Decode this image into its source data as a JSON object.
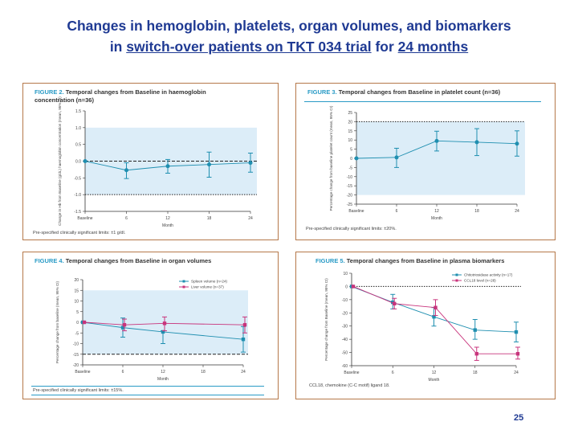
{
  "title": {
    "line1": "Changes in hemoglobin, platelets, organ volumes, and biomarkers",
    "line2_pre": "in ",
    "line2_u1": "switch-over patients on TKT 034 trial",
    "line2_mid": " for ",
    "line2_u2": "24 months"
  },
  "page_number": "25",
  "colors": {
    "teal": "#1f8fb0",
    "magenta": "#c8347c",
    "band": "#dcedf8",
    "border": "#b5784a"
  },
  "chart_data": [
    {
      "type": "line",
      "figure_label": "FIGURE 2.",
      "title": "Temporal changes from Baseline in haemoglobin concentration (n=36)",
      "xlabel": "Month",
      "ylabel": "Change in Hb from Baseline (g/dL) haemoglobin concentration (mean, 95% CI)",
      "categories": [
        "Baseline",
        "6",
        "12",
        "18",
        "24"
      ],
      "ylim": [
        -1.5,
        1.5
      ],
      "yticks": [
        "1.5",
        "1.0",
        "0.5",
        "0.0",
        "-0.5",
        "-1.0",
        "-1.5"
      ],
      "shaded_band": [
        -1,
        1
      ],
      "reference_lines": [
        {
          "y": 0,
          "style": "dashed"
        },
        {
          "y": -1,
          "style": "dotted"
        }
      ],
      "series": [
        {
          "values": [
            0,
            -0.27,
            -0.15,
            -0.1,
            -0.05
          ],
          "ci_low": [
            null,
            -0.52,
            -0.36,
            -0.48,
            -0.33
          ],
          "ci_high": [
            null,
            -0.05,
            0.05,
            0.27,
            0.24
          ],
          "color": "#1f8fb0"
        }
      ],
      "footnote": "Pre-specified clinically significant limits: ±1 g/dl."
    },
    {
      "type": "line",
      "figure_label": "FIGURE 3.",
      "title": "Temporal changes from Baseline in platelet count (n=36)",
      "xlabel": "Month",
      "ylabel": "Percentage change from baseline platelet count (mean, 95% CI)",
      "categories": [
        "Baseline",
        "6",
        "12",
        "18",
        "24"
      ],
      "ylim": [
        -25,
        25
      ],
      "yticks": [
        "25",
        "20",
        "15",
        "10",
        "5",
        "0",
        "-5",
        "-10",
        "-15",
        "-20",
        "-25"
      ],
      "shaded_band": [
        -20,
        20
      ],
      "reference_lines": [
        {
          "y": 20,
          "style": "dotted"
        }
      ],
      "series": [
        {
          "values": [
            0,
            0.5,
            9.5,
            8.8,
            8
          ],
          "ci_low": [
            null,
            -5,
            4,
            1.5,
            1.2
          ],
          "ci_high": [
            null,
            5.5,
            14.8,
            16.2,
            15
          ],
          "color": "#1f8fb0"
        }
      ],
      "footnote": "Pre-specified clinically significant limits: ±20%."
    },
    {
      "type": "line",
      "figure_label": "FIGURE 4.",
      "title": "Temporal changes from Baseline in organ volumes",
      "xlabel": "Month",
      "ylabel": "Percentage change from baseline (mean, 95% CI)",
      "categories": [
        "Baseline",
        "6",
        "12",
        "18",
        "24"
      ],
      "ylim": [
        -20,
        20
      ],
      "yticks": [
        "20",
        "15",
        "10",
        "5",
        "0",
        "-5",
        "-10",
        "-15",
        "-20"
      ],
      "shaded_band": [
        -15,
        15
      ],
      "reference_lines": [
        {
          "y": -15,
          "style": "dashed"
        }
      ],
      "legend": "top-right",
      "series": [
        {
          "name": "Spleen volume (n=24)",
          "values": [
            0,
            -2.5,
            -4.5,
            null,
            -8
          ],
          "ci_low": [
            null,
            -7,
            -10,
            null,
            -14
          ],
          "ci_high": [
            null,
            2,
            -4,
            null,
            -2
          ],
          "color": "#1f8fb0"
        },
        {
          "name": "Liver volume (n=37)",
          "values": [
            0,
            -1.2,
            -0.5,
            null,
            -1.2
          ],
          "ci_low": [
            null,
            -4,
            -4,
            null,
            -5
          ],
          "ci_high": [
            null,
            1.5,
            2.5,
            null,
            2.5
          ],
          "color": "#c8347c"
        }
      ],
      "footnote": "Pre-specified clinically significant limits: ±15%."
    },
    {
      "type": "line",
      "figure_label": "FIGURE 5.",
      "title": "Temporal changes from Baseline in plasma biomarkers",
      "xlabel": "Month",
      "ylabel": "Percentage change from Baseline (mean, 95% CI)",
      "categories": [
        "Baseline",
        "6",
        "12",
        "18",
        "24"
      ],
      "ylim": [
        -60,
        10
      ],
      "yticks": [
        "10",
        "0",
        "-10",
        "-20",
        "-30",
        "-40",
        "-50",
        "-60"
      ],
      "shaded_band": null,
      "reference_lines": [
        {
          "y": 0,
          "style": "dotted"
        }
      ],
      "legend": "top-right",
      "series": [
        {
          "name": "Chitotriosidase activity (n=17)",
          "values": [
            0,
            -12,
            -23,
            -33,
            -34.5
          ],
          "ci_low": [
            null,
            -17,
            -30,
            -40,
            -42
          ],
          "ci_high": [
            null,
            -6,
            -16,
            -25,
            -27
          ],
          "color": "#1f8fb0"
        },
        {
          "name": "CCL18 level (n=28)",
          "values": [
            0,
            -13,
            -16,
            -51,
            -51
          ],
          "ci_low": [
            null,
            -17,
            -22,
            -56,
            -55
          ],
          "ci_high": [
            null,
            -9,
            -10,
            -46,
            -46
          ],
          "color": "#c8347c"
        }
      ],
      "footnote": "CCL18, chemokine (C-C motif) ligand 18."
    }
  ]
}
